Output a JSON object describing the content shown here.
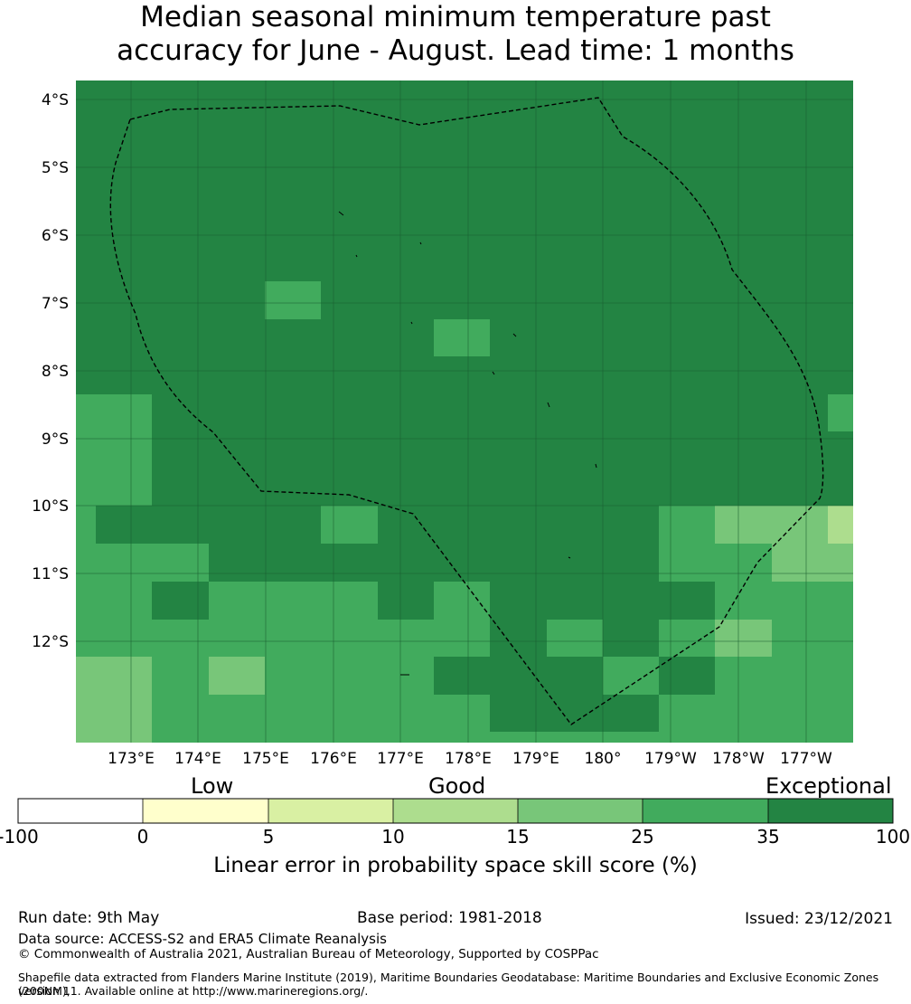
{
  "title": {
    "line1": "Median seasonal minimum temperature past",
    "line2": "accuracy for June - August. Lead time: 1 months"
  },
  "map": {
    "lat_labels": [
      "4°S",
      "5°S",
      "6°S",
      "7°S",
      "8°S",
      "9°S",
      "10°S",
      "11°S",
      "12°S"
    ],
    "lon_labels": [
      "173°E",
      "174°E",
      "175°E",
      "176°E",
      "177°E",
      "178°E",
      "179°E",
      "180°",
      "179°W",
      "178°W",
      "177°W"
    ],
    "base_color": "#238443",
    "boundary_color": "#000000"
  },
  "colorbar": {
    "category_labels": [
      "Low",
      "Good",
      "Exceptional"
    ],
    "tick_labels": [
      "-100",
      "0",
      "5",
      "10",
      "15",
      "25",
      "35",
      "100"
    ],
    "colors": [
      "#ffffff",
      "#ffffcc",
      "#d9f0a3",
      "#addd8e",
      "#78c679",
      "#41ab5d",
      "#238443"
    ],
    "title": "Linear error in probability space skill score (%)"
  },
  "footer": {
    "run_date": "Run date: 9th May",
    "base_period": "Base period: 1981-2018",
    "issued": "Issued: 23/12/2021",
    "data_source": "Data source: ACCESS-S2 and ERA5 Climate Reanalysis",
    "copyright": "© Commonwealth of Australia 2021, Australian Bureau of Meteorology, Supported by COSPPac",
    "shapefile_line1": "Shapefile data extracted from Flanders Marine Institute (2019), Maritime Boundaries Geodatabase: Maritime Boundaries and Exclusive Economic Zones (200NM),",
    "shapefile_line2": "version 11. Available online at http://www.marineregions.org/."
  }
}
